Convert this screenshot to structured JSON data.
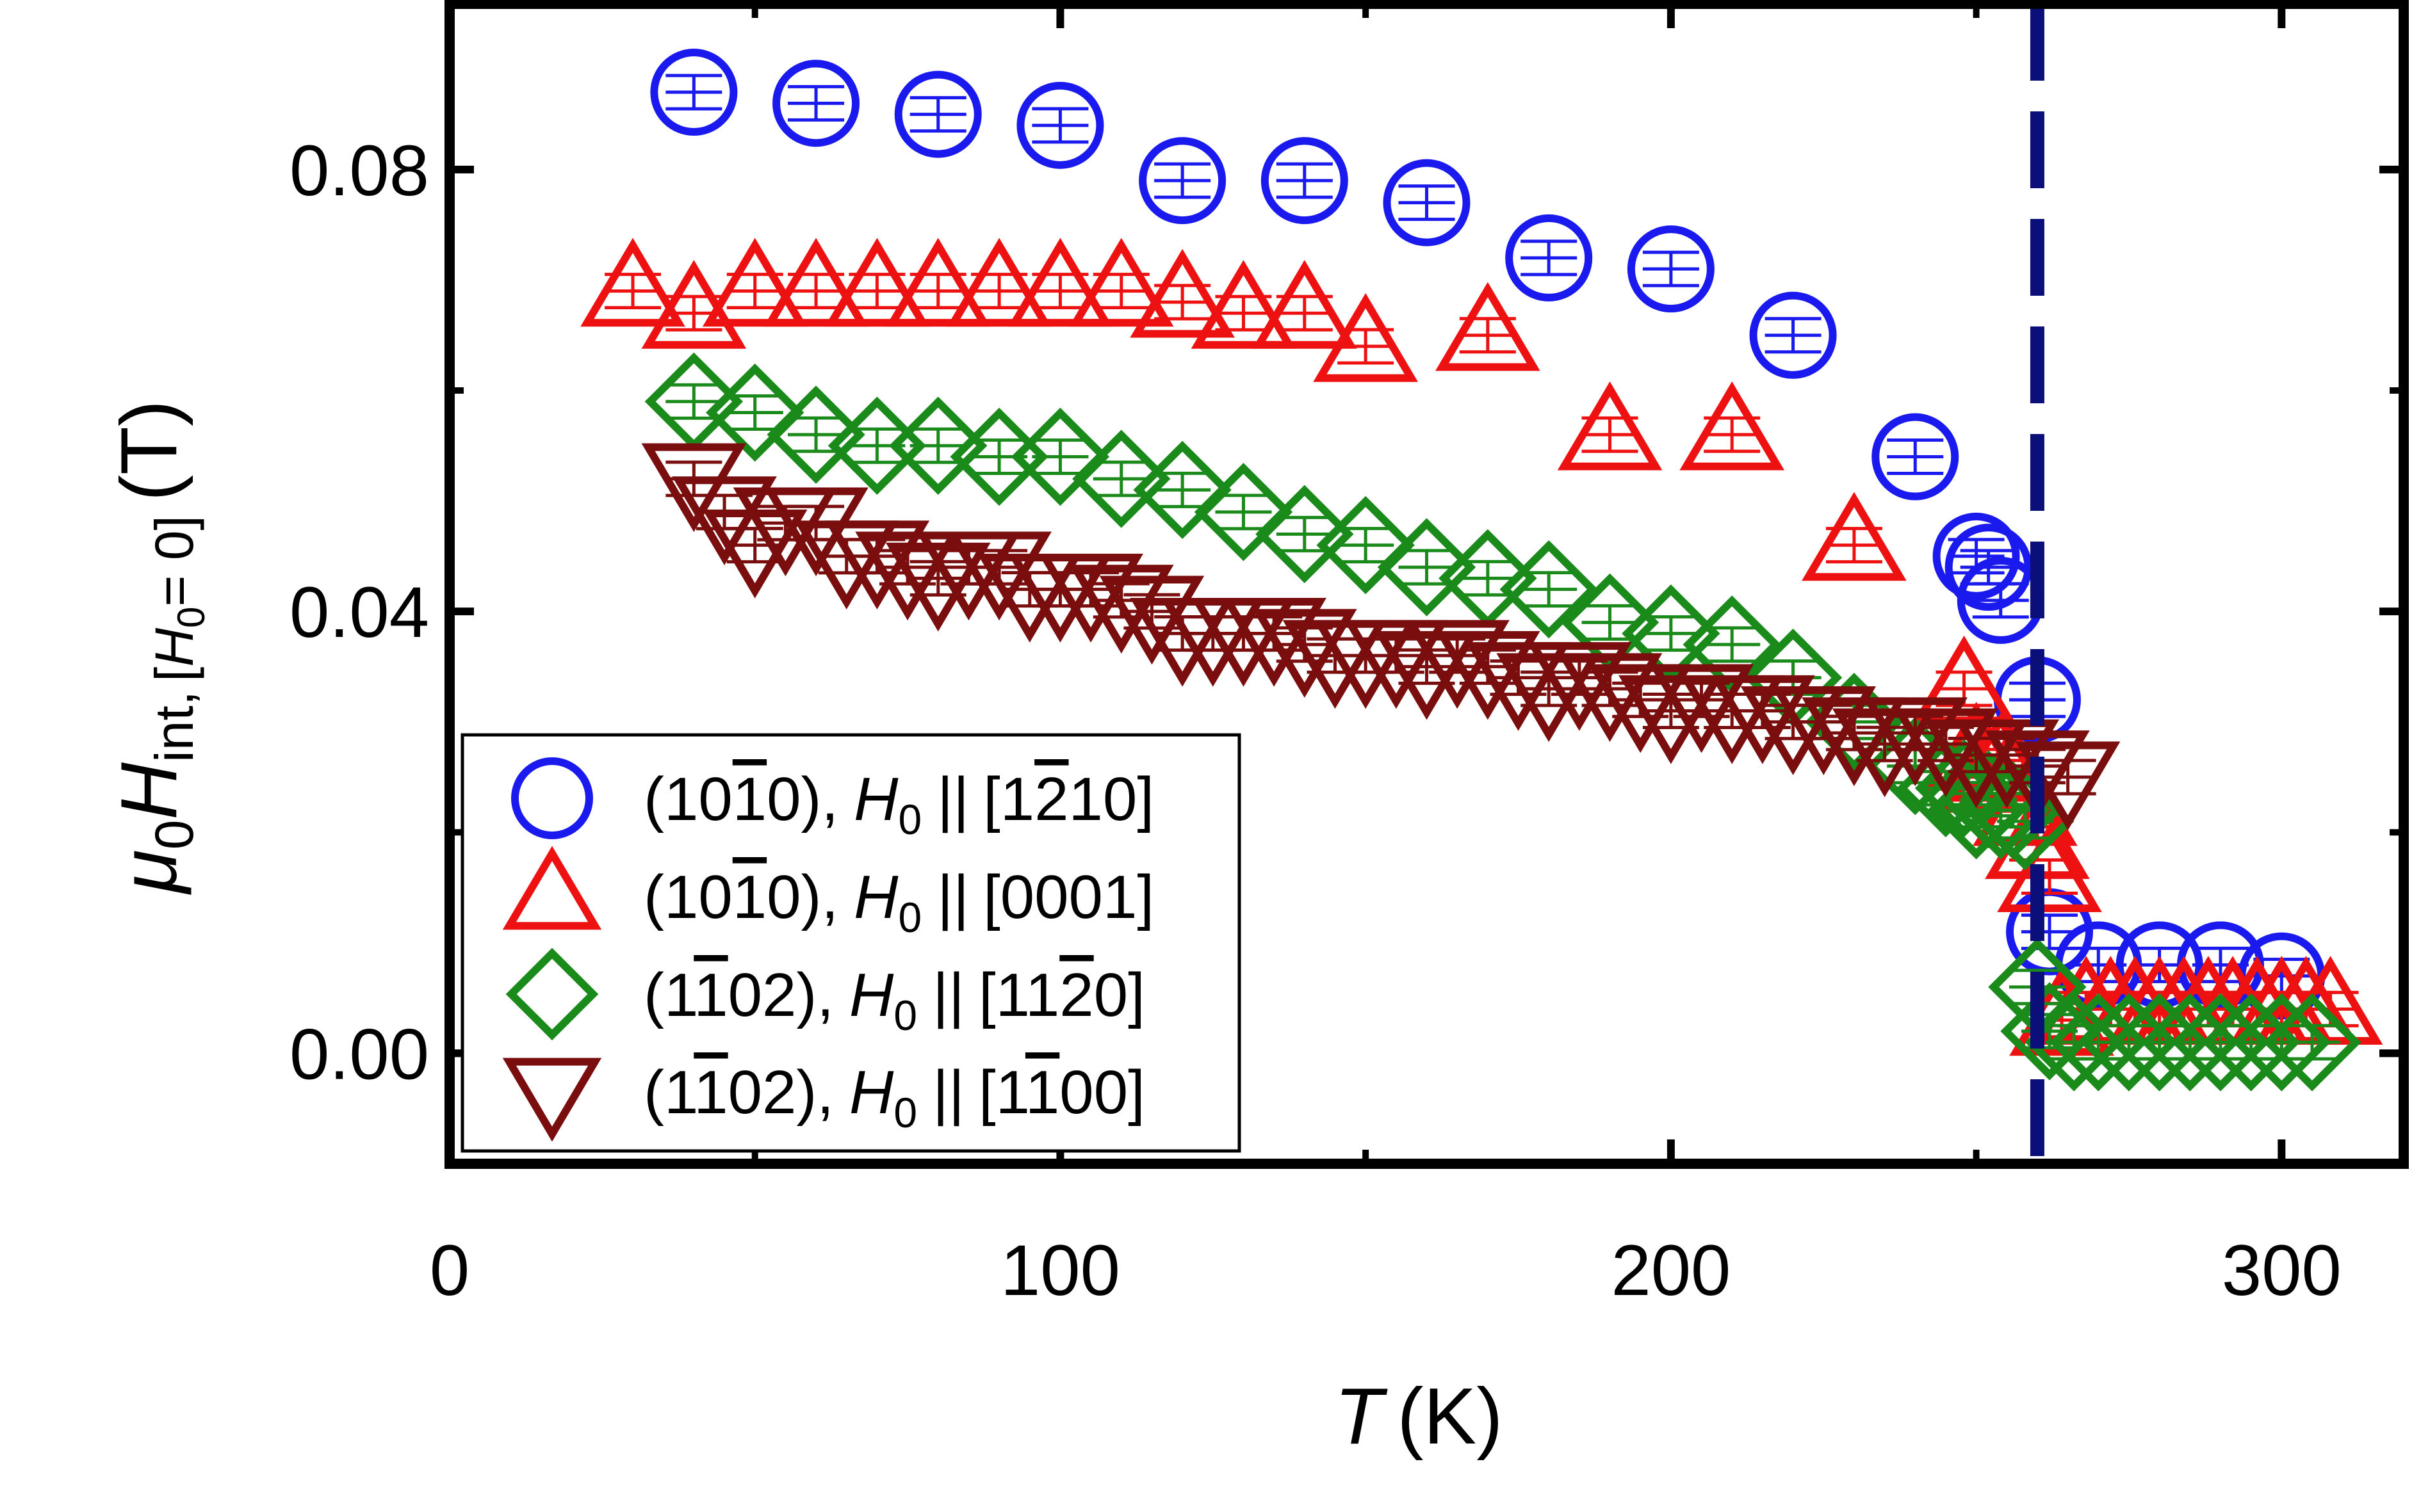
{
  "chart_data": {
    "type": "scatter",
    "title": "",
    "xlabel": "T (K)",
    "xlabel_parts": {
      "symbol": "T",
      "unit": "(K)"
    },
    "ylabel": "μ0Hint, [H0 = 0] (T)",
    "ylabel_parts": {
      "mu": "μ",
      "mu_sub": "0",
      "H": "H",
      "H_sub": "int,",
      "cond_open": "[",
      "cond_H": "H",
      "cond_H_sub": "0",
      "cond_eq": "= 0]",
      "unit": "(T)"
    },
    "xlim": [
      0,
      320
    ],
    "ylim": [
      -0.01,
      0.095
    ],
    "x_ticks": [
      0,
      100,
      200,
      300
    ],
    "y_ticks": [
      0.0,
      0.04,
      0.08
    ],
    "x_tick_labels": [
      "0",
      "100",
      "200",
      "300"
    ],
    "y_tick_labels": [
      "0.00",
      "0.04",
      "0.08"
    ],
    "vline": {
      "x": 260,
      "style": "dashed",
      "color": "#0a0f7a"
    },
    "legend_position": "lower-left",
    "series": [
      {
        "name": "(101̄0), H0 || [12̄10]",
        "label_parts": {
          "plane": "(10",
          "plane_bar": "1",
          "plane_end": "0),",
          "H": "H",
          "sub": "0",
          "par": "||",
          "dir_pre": "[1",
          "dir_bar": "2",
          "dir_post": "10]"
        },
        "marker": "circle",
        "color": "#1a1aee",
        "x": [
          40,
          60,
          80,
          100,
          120,
          140,
          160,
          180,
          200,
          220,
          240,
          250,
          252,
          254,
          260,
          262,
          270,
          280,
          290,
          300
        ],
        "y": [
          0.087,
          0.086,
          0.085,
          0.084,
          0.079,
          0.079,
          0.077,
          0.072,
          0.071,
          0.065,
          0.054,
          0.045,
          0.044,
          0.041,
          0.032,
          0.011,
          0.008,
          0.008,
          0.008,
          0.007
        ]
      },
      {
        "name": "(101̄0), H0 || [0001]",
        "label_parts": {
          "plane": "(10",
          "plane_bar": "1",
          "plane_end": "0),",
          "H": "H",
          "sub": "0",
          "par": "||",
          "dir_pre": "[0001]",
          "dir_bar": "",
          "dir_post": ""
        },
        "marker": "triangle-up",
        "color": "#ee1111",
        "x": [
          30,
          40,
          50,
          60,
          70,
          80,
          90,
          100,
          110,
          120,
          130,
          140,
          150,
          170,
          190,
          210,
          230,
          248,
          250,
          252,
          254,
          256,
          258,
          260,
          262,
          264,
          268,
          272,
          276,
          280,
          284,
          288,
          292,
          296,
          300,
          304,
          308
        ],
        "y": [
          0.069,
          0.067,
          0.069,
          0.069,
          0.069,
          0.069,
          0.069,
          0.069,
          0.069,
          0.068,
          0.067,
          0.067,
          0.064,
          0.065,
          0.056,
          0.056,
          0.046,
          0.033,
          0.027,
          0.025,
          0.026,
          0.025,
          0.022,
          0.019,
          0.016,
          0.003,
          0.004,
          0.004,
          0.004,
          0.004,
          0.004,
          0.004,
          0.004,
          0.004,
          0.004,
          0.004,
          0.004
        ]
      },
      {
        "name": "(11̄02), H0 || [112̄0]",
        "label_parts": {
          "plane": "(1",
          "plane_bar": "1",
          "plane_end": "02),",
          "H": "H",
          "sub": "0",
          "par": "||",
          "dir_pre": "[11",
          "dir_bar": "2",
          "dir_post": "0]"
        },
        "marker": "diamond",
        "color": "#1a8a1a",
        "x": [
          40,
          50,
          60,
          70,
          80,
          90,
          100,
          110,
          120,
          130,
          140,
          150,
          160,
          170,
          180,
          190,
          200,
          210,
          220,
          230,
          240,
          245,
          248,
          250,
          252,
          254,
          256,
          258,
          260,
          262,
          266,
          270,
          275,
          280,
          285,
          290,
          295,
          300,
          305
        ],
        "y": [
          0.059,
          0.058,
          0.056,
          0.055,
          0.055,
          0.054,
          0.054,
          0.052,
          0.051,
          0.049,
          0.047,
          0.046,
          0.044,
          0.043,
          0.042,
          0.039,
          0.038,
          0.037,
          0.034,
          0.03,
          0.026,
          0.024,
          0.024,
          0.022,
          0.023,
          0.022,
          0.022,
          0.021,
          0.006,
          0.002,
          0.001,
          0.001,
          0.001,
          0.001,
          0.001,
          0.001,
          0.001,
          0.001,
          0.001
        ]
      },
      {
        "name": "(11̄02), H0 || [11̄00]",
        "label_parts": {
          "plane": "(1",
          "plane_bar": "1",
          "plane_end": "02),",
          "H": "H",
          "sub": "0",
          "par": "||",
          "dir_pre": "[1",
          "dir_bar": "1",
          "dir_post": "00]"
        },
        "marker": "triangle-down",
        "color": "#7a0d0d",
        "x": [
          40,
          45,
          50,
          55,
          60,
          65,
          70,
          75,
          80,
          85,
          90,
          95,
          100,
          105,
          110,
          115,
          120,
          125,
          130,
          135,
          140,
          145,
          150,
          155,
          160,
          165,
          170,
          175,
          180,
          185,
          190,
          195,
          200,
          205,
          210,
          215,
          220,
          225,
          230,
          235,
          240,
          245,
          250,
          255,
          260,
          265
        ],
        "y": [
          0.052,
          0.049,
          0.046,
          0.048,
          0.048,
          0.045,
          0.045,
          0.044,
          0.043,
          0.044,
          0.044,
          0.042,
          0.042,
          0.042,
          0.041,
          0.04,
          0.038,
          0.038,
          0.038,
          0.038,
          0.037,
          0.036,
          0.036,
          0.036,
          0.035,
          0.036,
          0.035,
          0.034,
          0.033,
          0.034,
          0.033,
          0.032,
          0.031,
          0.032,
          0.031,
          0.031,
          0.03,
          0.03,
          0.029,
          0.028,
          0.029,
          0.028,
          0.027,
          0.027,
          0.026,
          0.025
        ]
      }
    ]
  }
}
